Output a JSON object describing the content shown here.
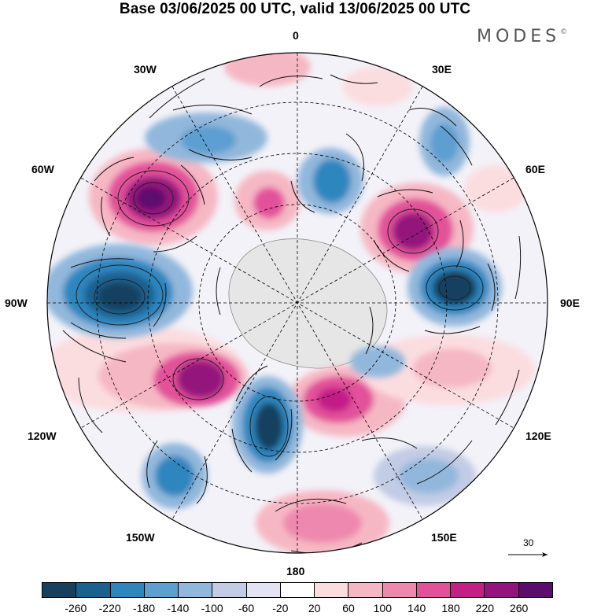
{
  "title": "Base 03/06/2025 00 UTC, valid 13/06/2025 00 UTC",
  "brand": "MODES",
  "brand_mark": "©",
  "longitude_labels": {
    "top": "0",
    "top_right": "30E",
    "right_upper": "60E",
    "right": "90E",
    "right_lower": "120E",
    "bottom_right": "150E",
    "bottom": "180",
    "bottom_left": "150W",
    "left_lower": "120W",
    "left": "90W",
    "left_upper": "60W",
    "top_left": "30W"
  },
  "vector_scale": {
    "label": "30"
  },
  "colorbar": {
    "colors": [
      "#16405e",
      "#1b618f",
      "#2f86bf",
      "#5d9fd0",
      "#92b7dc",
      "#c3cce5",
      "#e4e3f1",
      "#ffffff",
      "#fbdde0",
      "#f6b7c4",
      "#ef88ae",
      "#e2519a",
      "#c41f87",
      "#94137c",
      "#5c0c6d"
    ],
    "tick_labels": [
      "-260",
      "-220",
      "-180",
      "-140",
      "-100",
      "-60",
      "-20",
      "20",
      "60",
      "100",
      "140",
      "180",
      "220",
      "260"
    ]
  },
  "icons": {
    "arrow": "arrow-icon"
  }
}
